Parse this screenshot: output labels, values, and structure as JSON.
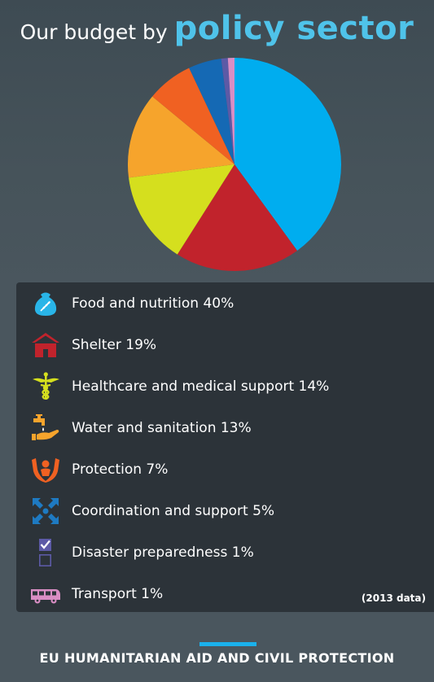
{
  "header": {
    "title_prefix": "Our budget by",
    "title_highlight": "policy sector"
  },
  "chart_data": {
    "type": "pie",
    "categories": [
      "Food and nutrition",
      "Shelter",
      "Healthcare and medical support",
      "Water and sanitation",
      "Protection",
      "Coordination and support",
      "Disaster preparedness",
      "Transport"
    ],
    "values": [
      40,
      19,
      14,
      13,
      7,
      5,
      1,
      1
    ],
    "colors": [
      "#00adef",
      "#c1232c",
      "#d5df1e",
      "#f6a42c",
      "#f06122",
      "#1569b4",
      "#5c5aa6",
      "#d98ec4"
    ],
    "unit": "%"
  },
  "legend": {
    "items": [
      {
        "label": "Food and nutrition 40%",
        "icon": "food-sack-icon",
        "color": "#29b5e8"
      },
      {
        "label": "Shelter 19%",
        "icon": "shelter-house-icon",
        "color": "#c1232c"
      },
      {
        "label": "Healthcare and medical support 14%",
        "icon": "caduceus-icon",
        "color": "#d5df1e"
      },
      {
        "label": "Water and sanitation 13%",
        "icon": "water-tap-icon",
        "color": "#f6a42c"
      },
      {
        "label": "Protection 7%",
        "icon": "protection-hands-icon",
        "color": "#f06122"
      },
      {
        "label": "Coordination and support 5%",
        "icon": "coordination-arrows-icon",
        "color": "#1e7ac2"
      },
      {
        "label": "Disaster preparedness 1%",
        "icon": "checklist-icon",
        "color": "#5c5aa6"
      },
      {
        "label": "Transport 1%",
        "icon": "bus-icon",
        "color": "#d98ec4"
      }
    ],
    "note": "(2013 data)"
  },
  "footer": {
    "text": "EU HUMANITARIAN AID AND CIVIL PROTECTION"
  }
}
